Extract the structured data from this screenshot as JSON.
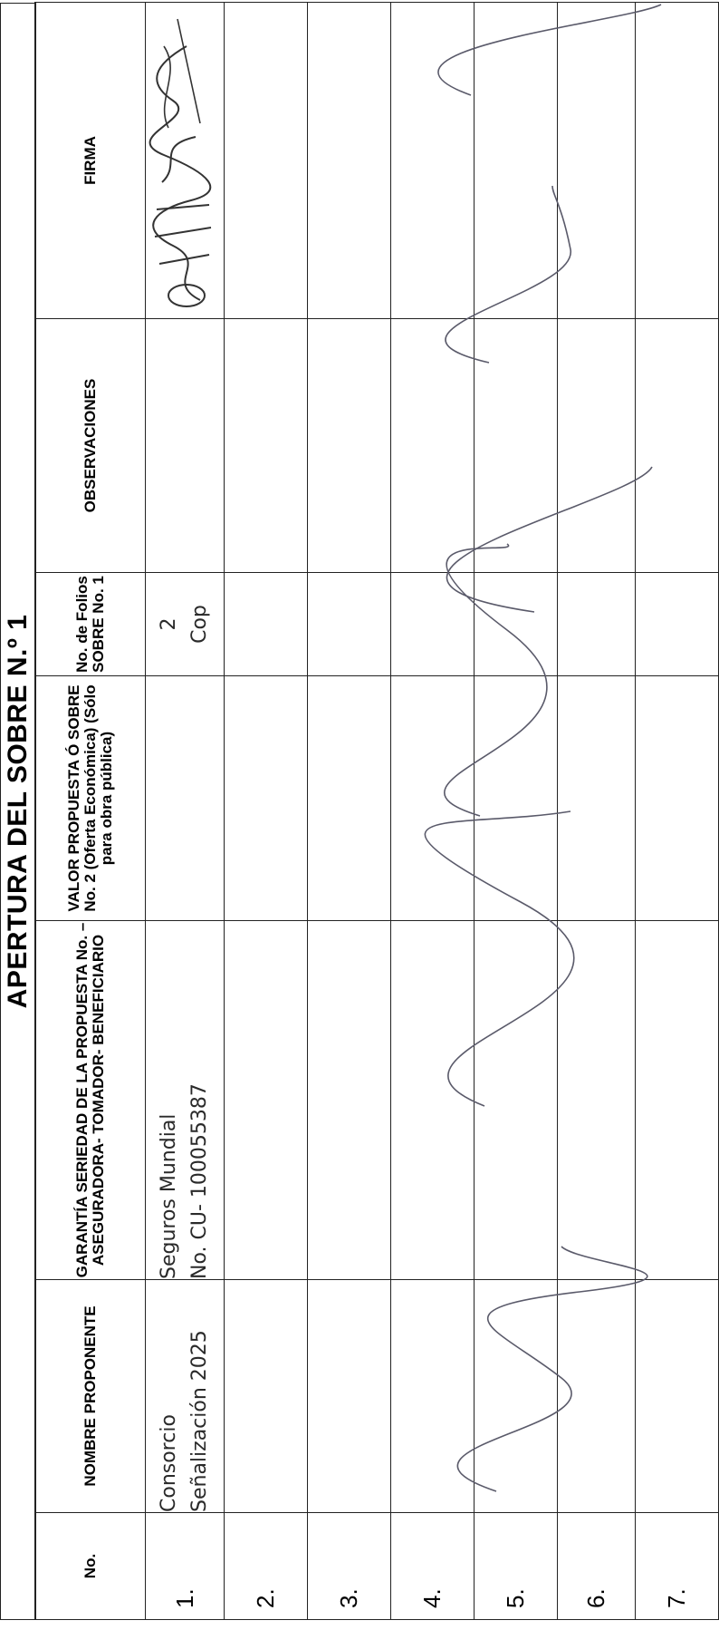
{
  "title": "APERTURA DEL SOBRE N.º 1",
  "headers": {
    "no": "No.",
    "proponente": "NOMBRE PROPONENTE",
    "garantia": "GARANTÍA SERIEDAD DE LA PROPUESTA No. – ASEGURADORA- TOMADOR- BENEFICIARIO",
    "valor": "VALOR PROPUESTA Ó SOBRE No. 2 (Oferta Económica) (Sólo para obra pública)",
    "folios": "No. de Folios SOBRE No. 1",
    "observaciones": "OBSERVACIONES",
    "firma": "FIRMA"
  },
  "rows": [
    {
      "num": "1.",
      "proponente_l1": "Consorcio",
      "proponente_l2": "Señalización 2025",
      "garantia_l1": "Seguros Mundial",
      "garantia_l2": "No. CU- 100055387",
      "folios_l1": "2",
      "folios_l2": "Cop"
    },
    {
      "num": "2."
    },
    {
      "num": "3."
    },
    {
      "num": "4."
    },
    {
      "num": "5."
    },
    {
      "num": "6."
    },
    {
      "num": "7."
    }
  ],
  "colors": {
    "ink": "#5a5a6a",
    "rule": "#222222"
  }
}
